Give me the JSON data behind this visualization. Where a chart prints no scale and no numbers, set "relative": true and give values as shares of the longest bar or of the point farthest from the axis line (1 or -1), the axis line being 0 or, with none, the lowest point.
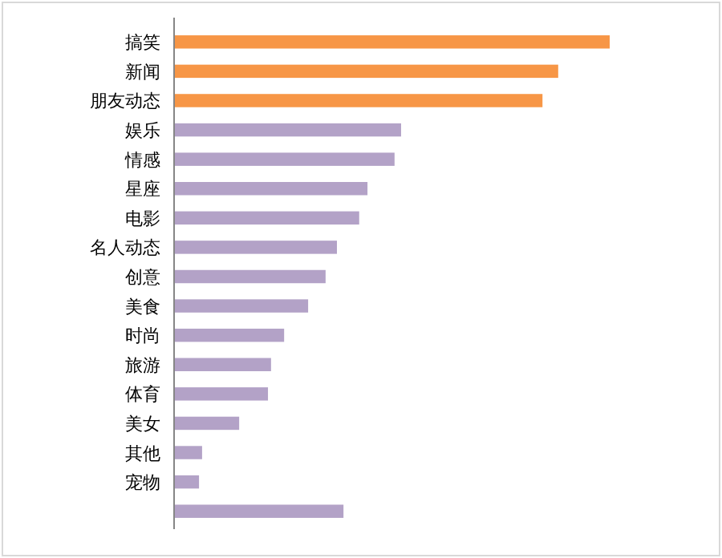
{
  "chart_data": {
    "type": "bar",
    "orientation": "horizontal",
    "relative": true,
    "categories": [
      "搞笑",
      "新闻",
      "朋友动态",
      "娱乐",
      "情感",
      "星座",
      "电影",
      "名人动态",
      "创意",
      "美食",
      "时尚",
      "旅游",
      "体育",
      "美女",
      "其他",
      "宠物",
      null
    ],
    "values": [
      1,
      0.882,
      0.846,
      0.522,
      0.507,
      0.445,
      0.426,
      0.375,
      0.349,
      0.309,
      0.254,
      0.224,
      0.217,
      0.151,
      0.066,
      0.059,
      0.39
    ],
    "colors": [
      "#f79646",
      "#f79646",
      "#f79646",
      "#b3a2c7",
      "#b3a2c7",
      "#b3a2c7",
      "#b3a2c7",
      "#b3a2c7",
      "#b3a2c7",
      "#b3a2c7",
      "#b3a2c7",
      "#b3a2c7",
      "#b3a2c7",
      "#b3a2c7",
      "#b3a2c7",
      "#b3a2c7",
      "#b3a2c7"
    ]
  }
}
